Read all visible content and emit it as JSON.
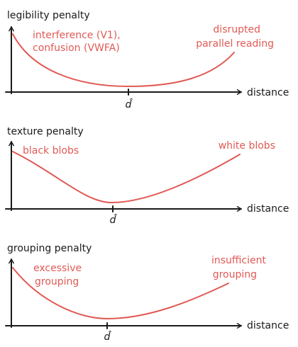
{
  "panels": [
    {
      "y_label": "legibility penalty",
      "x_label": "distance",
      "tick_label": "d̂",
      "left_annotation": [
        "interference (V1),",
        "confusion (VWFA)"
      ],
      "right_annotation": [
        "disrupted",
        "parallel reading"
      ]
    },
    {
      "y_label": "texture penalty",
      "x_label": "distance",
      "tick_label": "d̂",
      "left_annotation": [
        "black blobs"
      ],
      "right_annotation": [
        "white blobs"
      ]
    },
    {
      "y_label": "grouping penalty",
      "x_label": "distance",
      "tick_label": "d̂",
      "left_annotation": [
        "excessive",
        "grouping"
      ],
      "right_annotation": [
        "insufficient",
        "grouping"
      ]
    }
  ],
  "colors": {
    "curve": "#e05a55",
    "axis": "#1a1a1a"
  }
}
